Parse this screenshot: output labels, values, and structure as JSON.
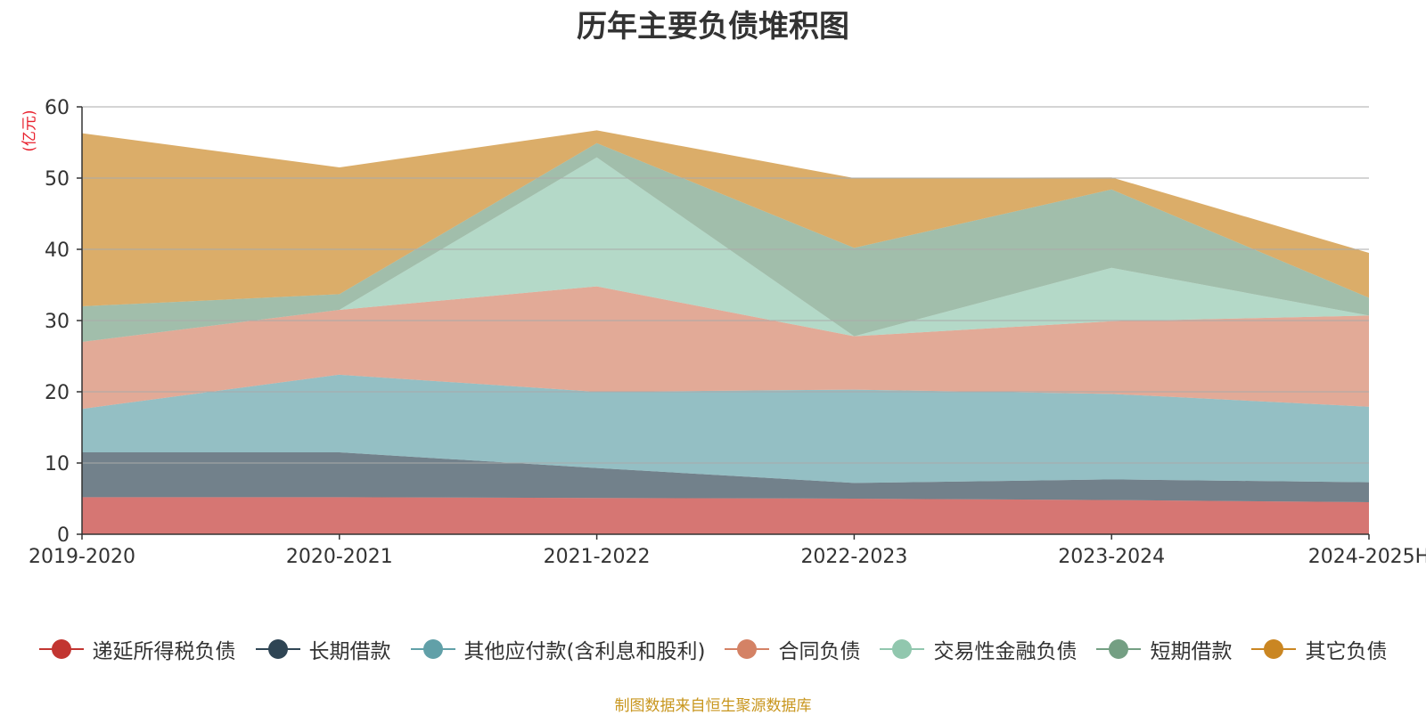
{
  "chart_data": {
    "type": "area",
    "stacked": true,
    "title": "历年主要负债堆积图",
    "ylabel": "(亿元)",
    "ylim": [
      0,
      60
    ],
    "yticks": [
      0,
      10,
      20,
      30,
      40,
      50,
      60
    ],
    "grid": true,
    "legend_position": "bottom",
    "categories": [
      "2019-2020",
      "2020-2021",
      "2021-2022",
      "2022-2023",
      "2023-2024",
      "2024-2025H"
    ],
    "series": [
      {
        "name": "递延所得税负债",
        "color": "#c23531",
        "values": [
          5.2,
          5.2,
          5.1,
          5.0,
          4.8,
          4.5
        ]
      },
      {
        "name": "长期借款",
        "color": "#2f4554",
        "values": [
          6.3,
          6.3,
          4.2,
          2.2,
          2.9,
          2.8
        ]
      },
      {
        "name": "其他应付款(含利息和股利)",
        "color": "#61a0a8",
        "values": [
          6.1,
          10.9,
          10.7,
          13.1,
          12.0,
          10.6
        ]
      },
      {
        "name": "合同负债",
        "color": "#d48265",
        "values": [
          9.4,
          9.1,
          14.8,
          7.5,
          10.2,
          12.8
        ]
      },
      {
        "name": "交易性金融负债",
        "color": "#91c7ae",
        "values": [
          0.0,
          0.0,
          18.1,
          0.0,
          7.5,
          0.0
        ]
      },
      {
        "name": "短期借款",
        "color": "#749f83",
        "values": [
          5.0,
          2.2,
          2.0,
          12.4,
          11.0,
          2.5
        ]
      },
      {
        "name": "其它负债",
        "color": "#ca8622",
        "values": [
          24.3,
          17.8,
          1.8,
          9.8,
          1.7,
          6.3
        ]
      }
    ]
  },
  "source": "制图数据来自恒生聚源数据库"
}
